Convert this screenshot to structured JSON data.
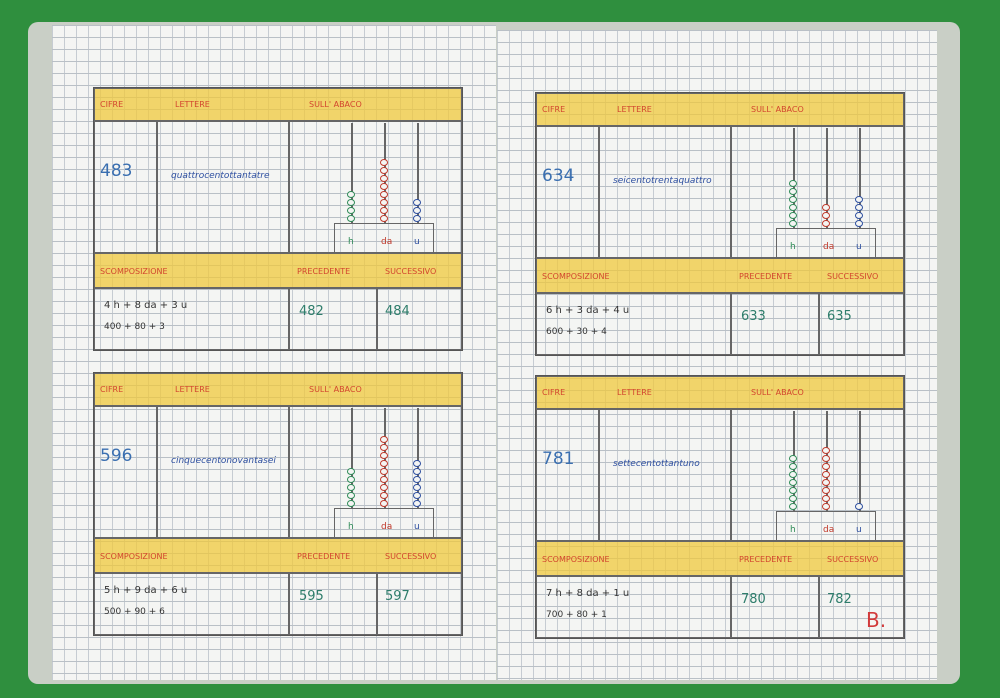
{
  "headers": {
    "cifre": "CIFRE",
    "lettere": "LETTERE",
    "abaco": "SULL' ABACO",
    "scomposizione": "SCOMPOSIZIONE",
    "precedente": "PRECEDENTE",
    "successivo": "SUCCESSIVO",
    "rods": [
      "h",
      "da",
      "u"
    ]
  },
  "cards": [
    {
      "cifre": "483",
      "lettere": "quattrocentottantatre",
      "beads": [
        4,
        8,
        3
      ],
      "scomposizione": [
        "4 h + 8 da + 3 u",
        "400 + 80 + 3"
      ],
      "precedente": "482",
      "successivo": "484"
    },
    {
      "cifre": "634",
      "lettere": "seicentotrentaquattro",
      "beads": [
        6,
        3,
        4
      ],
      "scomposizione": [
        "6 h + 3 da + 4 u",
        "600 + 30 + 4"
      ],
      "precedente": "633",
      "successivo": "635"
    },
    {
      "cifre": "596",
      "lettere": "cinquecentonovantasei",
      "beads": [
        5,
        9,
        6
      ],
      "scomposizione": [
        "5 h + 9 da + 6 u",
        "500 + 90 + 6"
      ],
      "precedente": "595",
      "successivo": "597"
    },
    {
      "cifre": "781",
      "lettere": "settecentottantuno",
      "beads": [
        7,
        8,
        1
      ],
      "scomposizione": [
        "7 h + 8 da + 1 u",
        "700 + 80 + 1"
      ],
      "precedente": "780",
      "successivo": "782"
    }
  ],
  "signature": "B."
}
